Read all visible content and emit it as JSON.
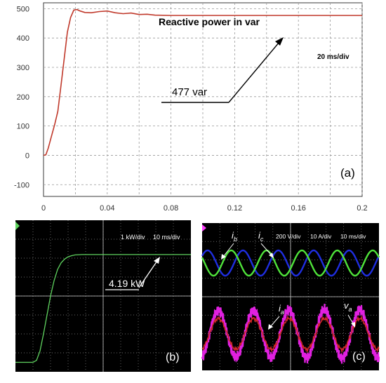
{
  "panel_a": {
    "title": "Reactive power in var",
    "scale_note": "20 ms/div",
    "annotation": "477 var",
    "panel_label": "(a)"
  },
  "panel_b": {
    "scale_kw": "1 kW/div",
    "scale_ms": "10 ms/div",
    "annotation": "4.19 kW",
    "panel_label": "(b)"
  },
  "panel_c": {
    "scale_v": "200 V/div",
    "scale_a": "10 A/div",
    "scale_ms": "10 ms/div",
    "label_ib": "i",
    "label_ib_sub": "b",
    "label_ic": "i",
    "label_ic_sub": "c",
    "label_ia": "i",
    "label_ia_sub": "a",
    "label_va": "v",
    "label_va_sub": "a",
    "panel_label": "(c)"
  },
  "colors": {
    "trace_a": "#c0392b",
    "trace_b": "#5fd35f",
    "ib": "#1f2ee0",
    "ic": "#4fe33a",
    "ia": "#d02828",
    "va": "#e020e0",
    "grid_dark": "#8a8a8a"
  },
  "chart_data": [
    {
      "type": "line",
      "title": "Reactive power in var",
      "xlim": [
        0,
        0.2
      ],
      "ylim": [
        -140,
        520
      ],
      "xticks": [
        "0",
        "0.04",
        "0.08",
        "0.12",
        "0.16",
        "0.2"
      ],
      "yticks": [
        "-100",
        "0",
        "100",
        "200",
        "300",
        "400",
        "500"
      ],
      "grid": true,
      "series": [
        {
          "x": [
            0,
            0.0015,
            0.003,
            0.005,
            0.007,
            0.009,
            0.011,
            0.013,
            0.015,
            0.017,
            0.019,
            0.021,
            0.023,
            0.026,
            0.03,
            0.035,
            0.04,
            0.045,
            0.05,
            0.055,
            0.06,
            0.065,
            0.07,
            0.08,
            0.1,
            0.12,
            0.15,
            0.2
          ],
          "y": [
            0,
            2,
            25,
            65,
            105,
            150,
            240,
            330,
            420,
            470,
            495,
            497,
            492,
            487,
            486,
            490,
            492,
            486,
            483,
            485,
            480,
            481,
            478,
            477,
            477,
            477,
            477,
            477
          ]
        }
      ],
      "annotations": [
        "477 var",
        "20 ms/div"
      ],
      "panel_label": "(a)"
    },
    {
      "type": "line",
      "scale": [
        "1 kW/div",
        "10 ms/div"
      ],
      "ylim": [
        -2,
        6
      ],
      "xlim": [
        0,
        100
      ],
      "grid": true,
      "series": [
        {
          "x": [
            0,
            10,
            12,
            14,
            16,
            18,
            20,
            22,
            24,
            26,
            28,
            30,
            32,
            34,
            38,
            45,
            60,
            100
          ],
          "y": [
            -1.5,
            -1.5,
            -1.4,
            -0.9,
            0,
            1.0,
            2.0,
            2.8,
            3.4,
            3.75,
            3.95,
            4.07,
            4.13,
            4.17,
            4.19,
            4.19,
            4.19,
            4.19
          ]
        }
      ],
      "annotations": [
        "4.19 kW"
      ],
      "panel_label": "(b)"
    },
    {
      "type": "line",
      "scale": [
        "200 V/div",
        "10 A/div",
        "10 ms/div"
      ],
      "xlim": [
        0,
        100
      ],
      "grid": true,
      "series": [
        {
          "name": "ib",
          "x": [
            0,
            100
          ],
          "y": [
            0,
            0
          ]
        },
        {
          "name": "ic",
          "x": [
            0,
            100
          ],
          "y": [
            0,
            0
          ]
        },
        {
          "name": "ia",
          "x": [
            0,
            100
          ],
          "y": [
            0,
            0
          ]
        },
        {
          "name": "va",
          "x": [
            0,
            100
          ],
          "y": [
            0,
            0
          ]
        }
      ],
      "cycles_shown": 5,
      "panel_label": "(c)"
    }
  ]
}
